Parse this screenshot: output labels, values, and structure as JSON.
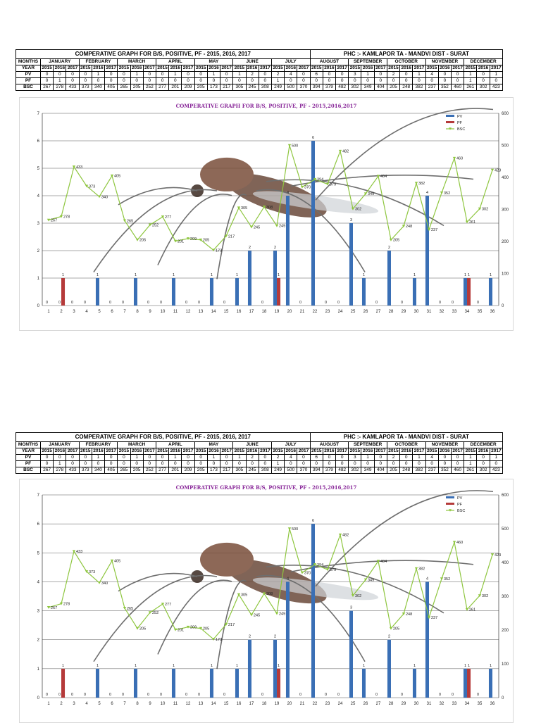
{
  "table": {
    "title": "COMPERATIVE GRAPH FOR B/S, POSITIVE, PF - 2015, 2016, 2017",
    "phc": "PHC :- KAMLAPOR    TA - MANDVI   DIST - SURAT",
    "months_label": "MONTHS",
    "year_label": "YEAR",
    "months": [
      "JANUARY",
      "FEBRUARY",
      "MARCH",
      "APRIL",
      "MAY",
      "JUNE",
      "JULY",
      "AUGUST",
      "SEPTEMBER",
      "OCTOBER",
      "NOVEMBER",
      "DECEMBER"
    ],
    "years": [
      "2015",
      "2016",
      "2017"
    ],
    "rows": [
      {
        "label": "PV",
        "values": [
          0,
          0,
          0,
          0,
          1,
          0,
          0,
          1,
          0,
          0,
          1,
          0,
          0,
          1,
          0,
          1,
          2,
          0,
          2,
          4,
          0,
          6,
          0,
          0,
          3,
          1,
          0,
          2,
          0,
          1,
          4,
          0,
          0,
          1,
          0,
          1
        ]
      },
      {
        "label": "PF",
        "values": [
          0,
          1,
          0,
          0,
          0,
          0,
          0,
          0,
          0,
          0,
          0,
          0,
          0,
          0,
          0,
          0,
          0,
          0,
          1,
          0,
          0,
          0,
          0,
          0,
          0,
          0,
          0,
          0,
          0,
          0,
          0,
          0,
          0,
          1,
          0,
          0
        ]
      },
      {
        "label": "BSC",
        "values": [
          267,
          278,
          433,
          373,
          340,
          405,
          265,
          205,
          252,
          277,
          201,
          209,
          205,
          173,
          217,
          305,
          245,
          308,
          249,
          500,
          370,
          394,
          379,
          482,
          302,
          349,
          404,
          205,
          248,
          382,
          237,
          352,
          460,
          261,
          302,
          423
        ]
      }
    ]
  },
  "charts": [
    {
      "title": "COMPERATIVE GRAPH FOR B/S, POSITIVE, PF - 2015,2016,2017"
    },
    {
      "title": "COMPERATIVE GRAPH FOR B/S, POSITIVE, PF - 2015,2016,2017"
    }
  ],
  "chart_data": [
    {
      "type": "bar",
      "title": "COMPERATIVE GRAPH FOR B/S, POSITIVE, PF - 2015,2016,2017",
      "x": [
        1,
        2,
        3,
        4,
        5,
        6,
        7,
        8,
        9,
        10,
        11,
        12,
        13,
        14,
        15,
        16,
        17,
        18,
        19,
        20,
        21,
        22,
        23,
        24,
        25,
        26,
        27,
        28,
        29,
        30,
        31,
        32,
        33,
        34,
        35,
        36
      ],
      "series": [
        {
          "name": "PV",
          "type": "bar",
          "axis": "left",
          "color": "#3a6fb5",
          "values": [
            0,
            0,
            0,
            0,
            1,
            0,
            0,
            1,
            0,
            0,
            1,
            0,
            0,
            1,
            0,
            1,
            2,
            0,
            2,
            4,
            0,
            6,
            0,
            0,
            3,
            1,
            0,
            2,
            0,
            1,
            4,
            0,
            0,
            1,
            0,
            1
          ]
        },
        {
          "name": "PF",
          "type": "bar",
          "axis": "left",
          "color": "#b53a3a",
          "values": [
            0,
            1,
            0,
            0,
            0,
            0,
            0,
            0,
            0,
            0,
            0,
            0,
            0,
            0,
            0,
            0,
            0,
            0,
            1,
            0,
            0,
            0,
            0,
            0,
            0,
            0,
            0,
            0,
            0,
            0,
            0,
            0,
            0,
            1,
            0,
            0
          ]
        },
        {
          "name": "BSC",
          "type": "line",
          "axis": "right",
          "color": "#8ec63f",
          "values": [
            267,
            278,
            433,
            373,
            340,
            405,
            265,
            205,
            252,
            277,
            201,
            209,
            205,
            173,
            217,
            305,
            245,
            308,
            249,
            500,
            370,
            394,
            379,
            482,
            302,
            349,
            404,
            205,
            248,
            382,
            237,
            352,
            460,
            261,
            302,
            423
          ]
        }
      ],
      "ylim_left": [
        0,
        7
      ],
      "ylim_right": [
        0,
        600
      ],
      "yticks_left": [
        0,
        1,
        2,
        3,
        4,
        5,
        6,
        7
      ],
      "yticks_right": [
        0,
        100,
        200,
        300,
        400,
        500,
        600
      ],
      "legend": "top-right",
      "grid": true
    },
    {
      "type": "bar",
      "title": "COMPERATIVE GRAPH FOR B/S, POSITIVE, PF - 2015,2016,2017",
      "x": [
        1,
        2,
        3,
        4,
        5,
        6,
        7,
        8,
        9,
        10,
        11,
        12,
        13,
        14,
        15,
        16,
        17,
        18,
        19,
        20,
        21,
        22,
        23,
        24,
        25,
        26,
        27,
        28,
        29,
        30,
        31,
        32,
        33,
        34,
        35,
        36
      ],
      "series": [
        {
          "name": "PV",
          "type": "bar",
          "axis": "left",
          "color": "#3a6fb5",
          "values": [
            0,
            0,
            0,
            0,
            1,
            0,
            0,
            1,
            0,
            0,
            1,
            0,
            0,
            1,
            0,
            1,
            2,
            0,
            2,
            4,
            0,
            6,
            0,
            0,
            3,
            1,
            0,
            2,
            0,
            1,
            4,
            0,
            0,
            1,
            0,
            1
          ]
        },
        {
          "name": "PF",
          "type": "bar",
          "axis": "left",
          "color": "#b53a3a",
          "values": [
            0,
            1,
            0,
            0,
            0,
            0,
            0,
            0,
            0,
            0,
            0,
            0,
            0,
            0,
            0,
            0,
            0,
            0,
            1,
            0,
            0,
            0,
            0,
            0,
            0,
            0,
            0,
            0,
            0,
            0,
            0,
            0,
            0,
            1,
            0,
            0
          ]
        },
        {
          "name": "BSC",
          "type": "line",
          "axis": "right",
          "color": "#8ec63f",
          "values": [
            267,
            278,
            433,
            373,
            340,
            405,
            265,
            205,
            252,
            277,
            201,
            209,
            205,
            173,
            217,
            305,
            245,
            308,
            249,
            500,
            370,
            394,
            379,
            482,
            302,
            349,
            404,
            205,
            248,
            382,
            237,
            352,
            460,
            261,
            302,
            423
          ]
        }
      ],
      "ylim_left": [
        0,
        7
      ],
      "ylim_right": [
        0,
        600
      ],
      "yticks_left": [
        0,
        1,
        2,
        3,
        4,
        5,
        6,
        7
      ],
      "yticks_right": [
        0,
        100,
        200,
        300,
        400,
        500,
        600
      ],
      "legend": "top-right",
      "grid": true
    }
  ]
}
